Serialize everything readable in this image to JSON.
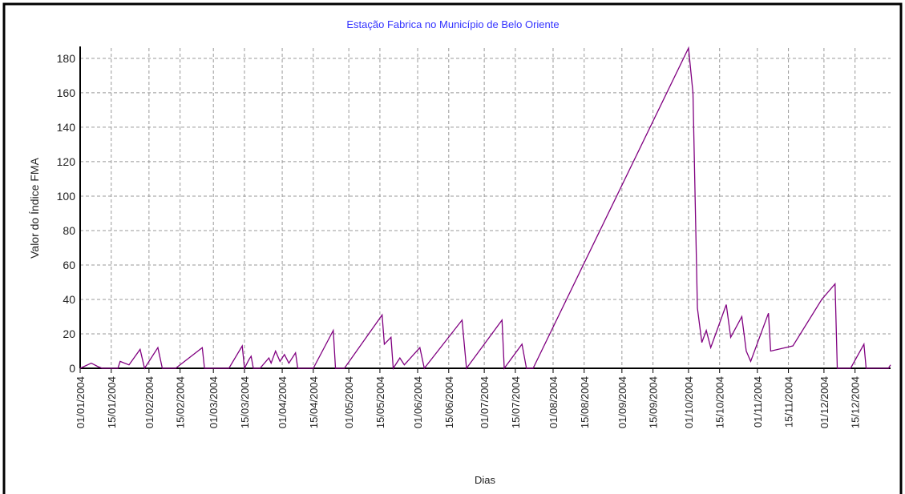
{
  "chart_data": {
    "type": "line",
    "title": "Estação Fabrica no Município de Belo Oriente",
    "x_label": "Dias",
    "y_label": "Valor do Índice FMA",
    "x": [
      "2004-01-01",
      "2004-01-06",
      "2004-01-09",
      "2004-01-11",
      "2004-01-18",
      "2004-01-19",
      "2004-01-23",
      "2004-01-28",
      "2004-01-30",
      "2004-02-05",
      "2004-02-07",
      "2004-02-13",
      "2004-02-25",
      "2004-02-26",
      "2004-03-08",
      "2004-03-14",
      "2004-03-15",
      "2004-03-17",
      "2004-03-18",
      "2004-03-19",
      "2004-03-22",
      "2004-03-26",
      "2004-03-27",
      "2004-03-29",
      "2004-03-31",
      "2004-04-02",
      "2004-04-04",
      "2004-04-07",
      "2004-04-08",
      "2004-04-15",
      "2004-04-24",
      "2004-04-25",
      "2004-04-29",
      "2004-05-16",
      "2004-05-17",
      "2004-05-20",
      "2004-05-21",
      "2004-05-24",
      "2004-05-26",
      "2004-06-02",
      "2004-06-04",
      "2004-06-21",
      "2004-06-23",
      "2004-07-09",
      "2004-07-10",
      "2004-07-18",
      "2004-07-20",
      "2004-07-23",
      "2004-10-01",
      "2004-10-03",
      "2004-10-05",
      "2004-10-07",
      "2004-10-09",
      "2004-10-11",
      "2004-10-18",
      "2004-10-20",
      "2004-10-25",
      "2004-10-27",
      "2004-10-29",
      "2004-11-06",
      "2004-11-07",
      "2004-11-17",
      "2004-11-30",
      "2004-12-06",
      "2004-12-07",
      "2004-12-13",
      "2004-12-19",
      "2004-12-20",
      "2004-12-30",
      "2004-12-31"
    ],
    "series": [
      {
        "name": "FMA",
        "color": "#800080",
        "values": [
          0,
          3,
          1,
          0,
          0,
          4,
          2,
          11,
          0,
          12,
          0,
          0,
          12,
          0,
          0,
          13,
          0,
          5,
          7,
          0,
          0,
          6,
          3,
          10,
          4,
          8,
          3,
          9,
          0,
          0,
          22,
          0,
          0,
          31,
          14,
          18,
          0,
          6,
          2,
          12,
          0,
          28,
          0,
          28,
          0,
          14,
          0,
          0,
          186,
          160,
          35,
          15,
          22,
          12,
          37,
          18,
          30,
          10,
          4,
          32,
          10,
          13,
          40,
          49,
          0,
          0,
          14,
          0,
          0,
          2
        ]
      }
    ],
    "xlim": [
      "2004-01-01",
      "2004-12-31"
    ],
    "xticks": [
      {
        "value": "2004-01-01",
        "label": "01/01/2004"
      },
      {
        "value": "2004-01-15",
        "label": "15/01/2004"
      },
      {
        "value": "2004-02-01",
        "label": "01/02/2004"
      },
      {
        "value": "2004-02-15",
        "label": "15/02/2004"
      },
      {
        "value": "2004-03-01",
        "label": "01/03/2004"
      },
      {
        "value": "2004-03-15",
        "label": "15/03/2004"
      },
      {
        "value": "2004-04-01",
        "label": "01/04/2004"
      },
      {
        "value": "2004-04-15",
        "label": "15/04/2004"
      },
      {
        "value": "2004-05-01",
        "label": "01/05/2004"
      },
      {
        "value": "2004-05-15",
        "label": "15/05/2004"
      },
      {
        "value": "2004-06-01",
        "label": "01/06/2004"
      },
      {
        "value": "2004-06-15",
        "label": "15/06/2004"
      },
      {
        "value": "2004-07-01",
        "label": "01/07/2004"
      },
      {
        "value": "2004-07-15",
        "label": "15/07/2004"
      },
      {
        "value": "2004-08-01",
        "label": "01/08/2004"
      },
      {
        "value": "2004-08-15",
        "label": "15/08/2004"
      },
      {
        "value": "2004-09-01",
        "label": "01/09/2004"
      },
      {
        "value": "2004-09-15",
        "label": "15/09/2004"
      },
      {
        "value": "2004-10-01",
        "label": "01/10/2004"
      },
      {
        "value": "2004-10-15",
        "label": "15/10/2004"
      },
      {
        "value": "2004-11-01",
        "label": "01/11/2004"
      },
      {
        "value": "2004-11-15",
        "label": "15/11/2004"
      },
      {
        "value": "2004-12-01",
        "label": "01/12/2004"
      },
      {
        "value": "2004-12-15",
        "label": "15/12/2004"
      }
    ],
    "ylim": [
      0,
      186
    ],
    "yticks": [
      0,
      20,
      40,
      60,
      80,
      100,
      120,
      140,
      160,
      180
    ],
    "grid": true
  }
}
